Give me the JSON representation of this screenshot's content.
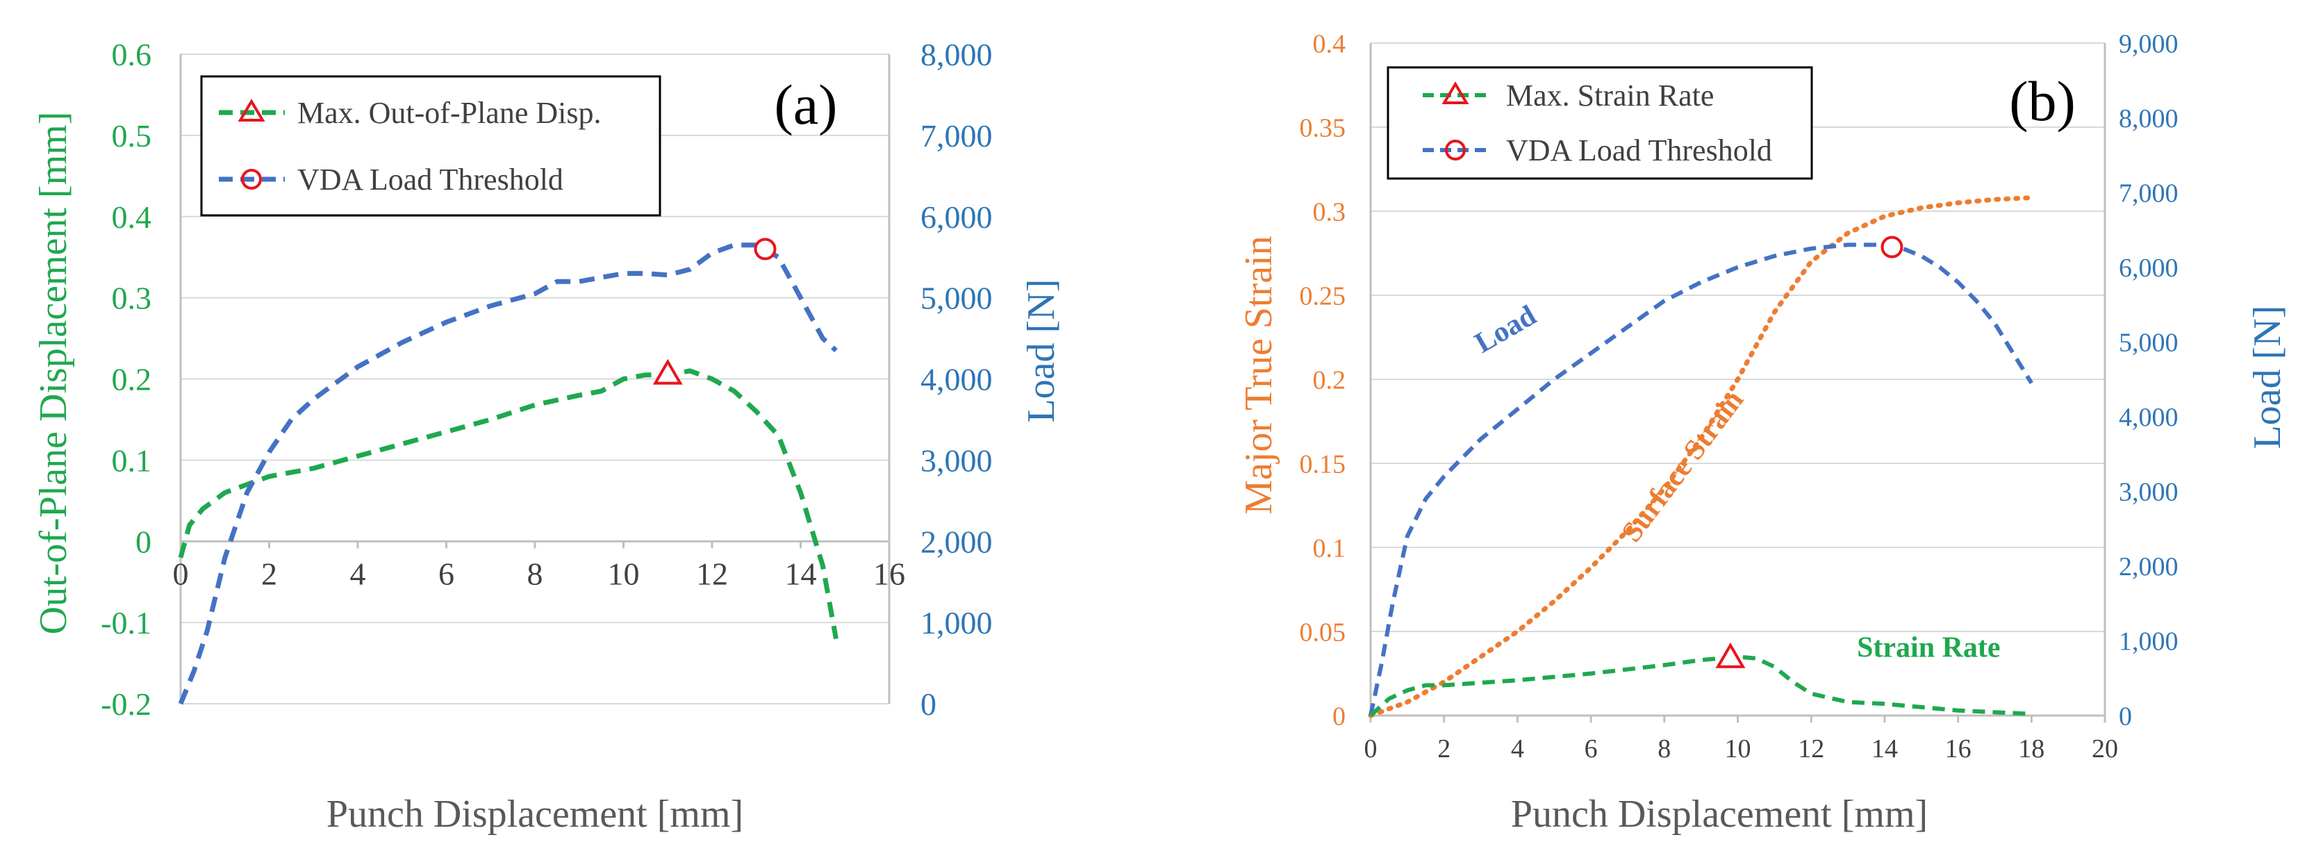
{
  "colors": {
    "green": "#1fa84e",
    "blue": "#4472c4",
    "orange": "#ed7d31",
    "marker": "#e8141c",
    "grid": "#d9d9d9",
    "text": "#404040"
  },
  "chart_data": [
    {
      "type": "line",
      "panel_label": "(a)",
      "xlabel": "Punch Displacement [mm]",
      "ylabel": "Out-of-Plane Displacement [mm]",
      "y2label": "Load [N]",
      "xlim": [
        0,
        16
      ],
      "ylim": [
        -0.2,
        0.6
      ],
      "y2lim": [
        0,
        8000
      ],
      "x_ticks": [
        0,
        2,
        4,
        6,
        8,
        10,
        12,
        14,
        16
      ],
      "x_tick_labels": [
        "0",
        "2",
        "4",
        "6",
        "8",
        "10",
        "12",
        "14",
        "16"
      ],
      "y_ticks": [
        -0.2,
        -0.1,
        0,
        0.1,
        0.2,
        0.3,
        0.4,
        0.5,
        0.6
      ],
      "y_tick_labels": [
        "-0.2",
        "-0.1",
        "0",
        "0.1",
        "0.2",
        "0.3",
        "0.4",
        "0.5",
        "0.6"
      ],
      "y2_ticks": [
        0,
        1000,
        2000,
        3000,
        4000,
        5000,
        6000,
        7000,
        8000
      ],
      "y2_tick_labels": [
        "0",
        "1,000",
        "2,000",
        "3,000",
        "4,000",
        "5,000",
        "6,000",
        "7,000",
        "8,000"
      ],
      "legend": [
        {
          "label": "Max. Out-of-Plane Disp.",
          "color_key": "green",
          "marker": "triangle"
        },
        {
          "label": "VDA Load Threshold",
          "color_key": "blue",
          "marker": "circle"
        }
      ],
      "series": [
        {
          "name": "Out-of-Plane Displacement",
          "axis": "left",
          "color_key": "green",
          "style": "dashed",
          "x": [
            0,
            0.2,
            0.5,
            1,
            1.5,
            2,
            3,
            4,
            5,
            6,
            7,
            8,
            9,
            9.5,
            10,
            10.5,
            11,
            11.5,
            12,
            12.5,
            13,
            13.5,
            14,
            14.5,
            14.8
          ],
          "y": [
            -0.02,
            0.02,
            0.04,
            0.06,
            0.07,
            0.08,
            0.09,
            0.105,
            0.12,
            0.135,
            0.15,
            0.168,
            0.18,
            0.185,
            0.2,
            0.205,
            0.205,
            0.21,
            0.2,
            0.185,
            0.16,
            0.13,
            0.06,
            -0.03,
            -0.12
          ]
        },
        {
          "name": "Load",
          "axis": "right",
          "color_key": "blue",
          "style": "dashed",
          "x": [
            0,
            0.3,
            0.6,
            1,
            1.5,
            2,
            2.5,
            3,
            3.5,
            4,
            5,
            6,
            7,
            8,
            8.5,
            9,
            9.5,
            10,
            10.5,
            11,
            11.5,
            12,
            12.5,
            13,
            13.5,
            14,
            14.5,
            14.8
          ],
          "y": [
            0,
            400,
            900,
            1800,
            2600,
            3100,
            3500,
            3750,
            3950,
            4150,
            4450,
            4700,
            4900,
            5050,
            5200,
            5200,
            5250,
            5300,
            5300,
            5280,
            5350,
            5550,
            5650,
            5650,
            5500,
            5000,
            4500,
            4350
          ]
        }
      ],
      "markers": [
        {
          "type": "triangle",
          "x": 11.0,
          "y": 0.205,
          "axis": "left"
        },
        {
          "type": "circle",
          "x": 13.2,
          "y": 5600,
          "axis": "right"
        }
      ]
    },
    {
      "type": "line",
      "panel_label": "(b)",
      "xlabel": "Punch Displacement [mm]",
      "ylabel": "Major True Strain",
      "y2label": "Load [N]",
      "xlim": [
        0,
        20
      ],
      "ylim": [
        0,
        0.4
      ],
      "y2lim": [
        0,
        9000
      ],
      "x_ticks": [
        0,
        2,
        4,
        6,
        8,
        10,
        12,
        14,
        16,
        18,
        20
      ],
      "x_tick_labels": [
        "0",
        "2",
        "4",
        "6",
        "8",
        "10",
        "12",
        "14",
        "16",
        "18",
        "20"
      ],
      "y_ticks": [
        0,
        0.05,
        0.1,
        0.15,
        0.2,
        0.25,
        0.3,
        0.35,
        0.4
      ],
      "y_tick_labels": [
        "0",
        "0.05",
        "0.1",
        "0.15",
        "0.2",
        "0.25",
        "0.3",
        "0.35",
        "0.4"
      ],
      "y2_ticks": [
        0,
        1000,
        2000,
        3000,
        4000,
        5000,
        6000,
        7000,
        8000,
        9000
      ],
      "y2_tick_labels": [
        "0",
        "1,000",
        "2,000",
        "3,000",
        "4,000",
        "5,000",
        "6,000",
        "7,000",
        "8,000",
        "9,000"
      ],
      "legend": [
        {
          "label": "Max. Strain Rate",
          "color_key": "green",
          "marker": "triangle"
        },
        {
          "label": "VDA Load Threshold",
          "color_key": "blue",
          "marker": "circle"
        }
      ],
      "annotations": [
        {
          "text": "Load",
          "color_key": "blue",
          "x": 3.8,
          "y": 0.225,
          "rotate": -30
        },
        {
          "text": "Surface Strain",
          "color_key": "orange",
          "x": 8.7,
          "y": 0.145,
          "rotate": -53
        },
        {
          "text": "Strain Rate",
          "color_key": "green",
          "x": 15.2,
          "y": 0.035,
          "rotate": 0
        }
      ],
      "series": [
        {
          "name": "Surface Strain",
          "axis": "left",
          "color_key": "orange",
          "style": "dotted",
          "x": [
            0,
            1,
            2,
            3,
            4,
            5,
            6,
            7,
            8,
            9,
            10,
            11,
            12,
            13,
            14,
            15,
            16,
            17,
            18
          ],
          "y": [
            0,
            0.008,
            0.02,
            0.035,
            0.05,
            0.068,
            0.088,
            0.11,
            0.135,
            0.165,
            0.2,
            0.24,
            0.27,
            0.287,
            0.297,
            0.302,
            0.305,
            0.307,
            0.308
          ]
        },
        {
          "name": "Load",
          "axis": "right",
          "color_key": "blue",
          "style": "dashed",
          "x": [
            0,
            0.3,
            0.6,
            1,
            1.5,
            2,
            3,
            4,
            5,
            6,
            7,
            8,
            9,
            10,
            11,
            12,
            13,
            14,
            14.5,
            15,
            15.5,
            16,
            16.5,
            17,
            17.5,
            18
          ],
          "y": [
            0,
            700,
            1500,
            2400,
            2900,
            3200,
            3700,
            4100,
            4500,
            4850,
            5200,
            5550,
            5800,
            6000,
            6150,
            6250,
            6300,
            6300,
            6250,
            6150,
            6000,
            5800,
            5550,
            5250,
            4850,
            4450
          ]
        },
        {
          "name": "Strain Rate",
          "axis": "left",
          "color_key": "green",
          "style": "dashed",
          "x": [
            0,
            0.5,
            1,
            1.5,
            2,
            4,
            6,
            8,
            9,
            9.5,
            10,
            10.5,
            11,
            11.5,
            12,
            13,
            14,
            15,
            16,
            17,
            18
          ],
          "y": [
            0,
            0.01,
            0.015,
            0.018,
            0.018,
            0.021,
            0.025,
            0.03,
            0.033,
            0.034,
            0.035,
            0.034,
            0.029,
            0.02,
            0.013,
            0.008,
            0.007,
            0.005,
            0.003,
            0.002,
            0.001
          ]
        }
      ],
      "markers": [
        {
          "type": "triangle",
          "x": 9.8,
          "y": 0.034,
          "axis": "left"
        },
        {
          "type": "circle",
          "x": 14.2,
          "y": 6270,
          "axis": "right"
        }
      ]
    }
  ]
}
